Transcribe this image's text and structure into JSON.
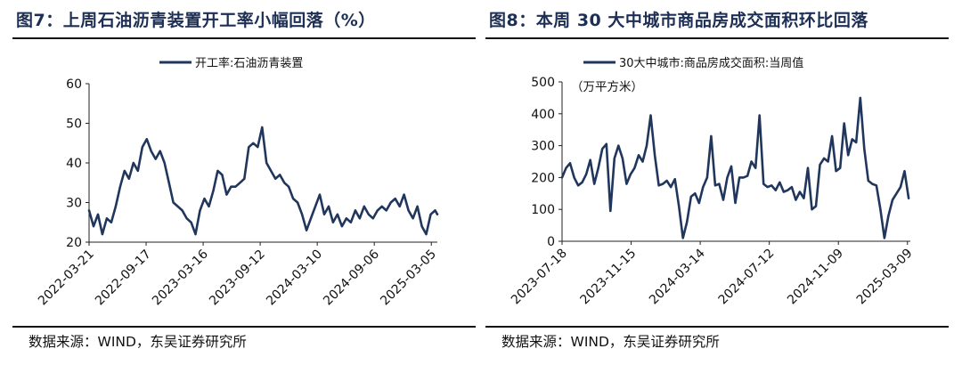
{
  "colors": {
    "series": "#20365c",
    "title": "#1d2f54"
  },
  "chart_data": [
    {
      "type": "line",
      "title": "图7：上周石油沥青装置开工率小幅回落（%）",
      "source": "数据来源：WIND，东吴证券研究所",
      "legend": "top-center",
      "grid": false,
      "ylim": [
        20,
        60
      ],
      "yticks": [
        "20",
        "30",
        "40",
        "50",
        "60"
      ],
      "xlim": [
        "2022-03-21",
        "2025-03-24"
      ],
      "xticks": [
        "2022-03-21",
        "2022-09-17",
        "2023-03-16",
        "2023-09-12",
        "2024-03-10",
        "2024-09-06",
        "2025-03-05"
      ],
      "series": [
        {
          "name": "开工率:石油沥青装置",
          "points": [
            [
              "2022-03-21",
              28
            ],
            [
              "2022-04-04",
              24
            ],
            [
              "2022-04-18",
              27
            ],
            [
              "2022-05-02",
              22
            ],
            [
              "2022-05-16",
              26
            ],
            [
              "2022-05-30",
              25
            ],
            [
              "2022-06-13",
              29
            ],
            [
              "2022-06-27",
              34
            ],
            [
              "2022-07-11",
              38
            ],
            [
              "2022-07-25",
              36
            ],
            [
              "2022-08-08",
              40
            ],
            [
              "2022-08-22",
              38
            ],
            [
              "2022-09-05",
              44
            ],
            [
              "2022-09-19",
              46
            ],
            [
              "2022-10-03",
              43
            ],
            [
              "2022-10-17",
              41
            ],
            [
              "2022-10-31",
              43
            ],
            [
              "2022-11-14",
              40
            ],
            [
              "2022-11-28",
              35
            ],
            [
              "2022-12-12",
              30
            ],
            [
              "2022-12-26",
              29
            ],
            [
              "2023-01-09",
              28
            ],
            [
              "2023-01-23",
              26
            ],
            [
              "2023-02-06",
              25
            ],
            [
              "2023-02-20",
              22
            ],
            [
              "2023-03-06",
              28
            ],
            [
              "2023-03-20",
              31
            ],
            [
              "2023-04-03",
              29
            ],
            [
              "2023-04-17",
              33
            ],
            [
              "2023-05-01",
              38
            ],
            [
              "2023-05-15",
              37
            ],
            [
              "2023-05-29",
              32
            ],
            [
              "2023-06-12",
              34
            ],
            [
              "2023-06-26",
              34
            ],
            [
              "2023-07-10",
              35
            ],
            [
              "2023-07-24",
              36
            ],
            [
              "2023-08-07",
              44
            ],
            [
              "2023-08-21",
              45
            ],
            [
              "2023-09-04",
              44
            ],
            [
              "2023-09-18",
              49
            ],
            [
              "2023-10-02",
              40
            ],
            [
              "2023-10-16",
              38
            ],
            [
              "2023-10-30",
              36
            ],
            [
              "2023-11-13",
              37
            ],
            [
              "2023-11-27",
              35
            ],
            [
              "2023-12-11",
              34
            ],
            [
              "2023-12-25",
              31
            ],
            [
              "2024-01-08",
              30
            ],
            [
              "2024-01-22",
              27
            ],
            [
              "2024-02-05",
              23
            ],
            [
              "2024-02-19",
              26
            ],
            [
              "2024-03-04",
              29
            ],
            [
              "2024-03-18",
              32
            ],
            [
              "2024-04-01",
              27
            ],
            [
              "2024-04-15",
              29
            ],
            [
              "2024-04-29",
              25
            ],
            [
              "2024-05-13",
              27
            ],
            [
              "2024-05-27",
              24
            ],
            [
              "2024-06-10",
              26
            ],
            [
              "2024-06-24",
              25
            ],
            [
              "2024-07-08",
              28
            ],
            [
              "2024-07-22",
              26
            ],
            [
              "2024-08-05",
              29
            ],
            [
              "2024-08-19",
              27
            ],
            [
              "2024-09-02",
              26
            ],
            [
              "2024-09-16",
              28
            ],
            [
              "2024-09-30",
              29
            ],
            [
              "2024-10-14",
              28
            ],
            [
              "2024-10-28",
              30
            ],
            [
              "2024-11-11",
              31
            ],
            [
              "2024-11-25",
              29
            ],
            [
              "2024-12-09",
              32
            ],
            [
              "2024-12-23",
              28
            ],
            [
              "2025-01-06",
              26
            ],
            [
              "2025-01-20",
              29
            ],
            [
              "2025-02-03",
              24
            ],
            [
              "2025-02-17",
              22
            ],
            [
              "2025-03-03",
              27
            ],
            [
              "2025-03-17",
              28
            ],
            [
              "2025-03-24",
              27
            ]
          ]
        }
      ]
    },
    {
      "type": "line",
      "title": "图8：本周 30 大中城市商品房成交面积环比回落",
      "source": "数据来源：WIND，东吴证券研究所",
      "unit": "（万平方米）",
      "legend": "top-center",
      "grid": false,
      "ylim": [
        0,
        500
      ],
      "yticks": [
        "0",
        "100",
        "200",
        "300",
        "400",
        "500"
      ],
      "xlim": [
        "2023-07-18",
        "2025-03-14"
      ],
      "xticks": [
        "2023-07-18",
        "2023-11-15",
        "2024-03-14",
        "2024-07-12",
        "2024-11-09",
        "2025-03-09"
      ],
      "series": [
        {
          "name": "30大中城市:商品房成交面积:当周值",
          "points": [
            [
              "2023-07-18",
              200
            ],
            [
              "2023-07-25",
              230
            ],
            [
              "2023-08-01",
              245
            ],
            [
              "2023-08-08",
              200
            ],
            [
              "2023-08-15",
              175
            ],
            [
              "2023-08-22",
              185
            ],
            [
              "2023-08-29",
              210
            ],
            [
              "2023-09-05",
              255
            ],
            [
              "2023-09-12",
              180
            ],
            [
              "2023-09-19",
              230
            ],
            [
              "2023-09-26",
              290
            ],
            [
              "2023-10-03",
              305
            ],
            [
              "2023-10-10",
              95
            ],
            [
              "2023-10-17",
              260
            ],
            [
              "2023-10-24",
              300
            ],
            [
              "2023-10-31",
              260
            ],
            [
              "2023-11-07",
              180
            ],
            [
              "2023-11-14",
              210
            ],
            [
              "2023-11-21",
              230
            ],
            [
              "2023-11-28",
              270
            ],
            [
              "2023-12-05",
              250
            ],
            [
              "2023-12-12",
              300
            ],
            [
              "2023-12-19",
              395
            ],
            [
              "2023-12-26",
              270
            ],
            [
              "2024-01-02",
              175
            ],
            [
              "2024-01-09",
              180
            ],
            [
              "2024-01-16",
              190
            ],
            [
              "2024-01-23",
              170
            ],
            [
              "2024-01-30",
              195
            ],
            [
              "2024-02-06",
              110
            ],
            [
              "2024-02-13",
              10
            ],
            [
              "2024-02-20",
              60
            ],
            [
              "2024-02-27",
              140
            ],
            [
              "2024-03-05",
              150
            ],
            [
              "2024-03-12",
              120
            ],
            [
              "2024-03-19",
              170
            ],
            [
              "2024-03-26",
              200
            ],
            [
              "2024-04-02",
              330
            ],
            [
              "2024-04-09",
              175
            ],
            [
              "2024-04-16",
              180
            ],
            [
              "2024-04-23",
              130
            ],
            [
              "2024-04-30",
              200
            ],
            [
              "2024-05-07",
              235
            ],
            [
              "2024-05-14",
              120
            ],
            [
              "2024-05-21",
              200
            ],
            [
              "2024-05-28",
              200
            ],
            [
              "2024-06-04",
              205
            ],
            [
              "2024-06-11",
              250
            ],
            [
              "2024-06-18",
              230
            ],
            [
              "2024-06-25",
              395
            ],
            [
              "2024-07-02",
              180
            ],
            [
              "2024-07-09",
              170
            ],
            [
              "2024-07-16",
              175
            ],
            [
              "2024-07-23",
              160
            ],
            [
              "2024-07-30",
              185
            ],
            [
              "2024-08-06",
              155
            ],
            [
              "2024-08-13",
              160
            ],
            [
              "2024-08-20",
              170
            ],
            [
              "2024-08-27",
              130
            ],
            [
              "2024-09-03",
              155
            ],
            [
              "2024-09-10",
              135
            ],
            [
              "2024-09-17",
              230
            ],
            [
              "2024-09-24",
              100
            ],
            [
              "2024-10-01",
              110
            ],
            [
              "2024-10-08",
              240
            ],
            [
              "2024-10-15",
              260
            ],
            [
              "2024-10-22",
              250
            ],
            [
              "2024-10-29",
              330
            ],
            [
              "2024-11-05",
              220
            ],
            [
              "2024-11-12",
              230
            ],
            [
              "2024-11-19",
              370
            ],
            [
              "2024-11-26",
              270
            ],
            [
              "2024-12-03",
              320
            ],
            [
              "2024-12-10",
              310
            ],
            [
              "2024-12-17",
              450
            ],
            [
              "2024-12-24",
              290
            ],
            [
              "2024-12-31",
              190
            ],
            [
              "2025-01-07",
              180
            ],
            [
              "2025-01-14",
              175
            ],
            [
              "2025-01-21",
              100
            ],
            [
              "2025-01-28",
              10
            ],
            [
              "2025-02-04",
              80
            ],
            [
              "2025-02-11",
              130
            ],
            [
              "2025-02-18",
              150
            ],
            [
              "2025-02-25",
              170
            ],
            [
              "2025-03-04",
              220
            ],
            [
              "2025-03-11",
              135
            ]
          ]
        }
      ]
    }
  ]
}
